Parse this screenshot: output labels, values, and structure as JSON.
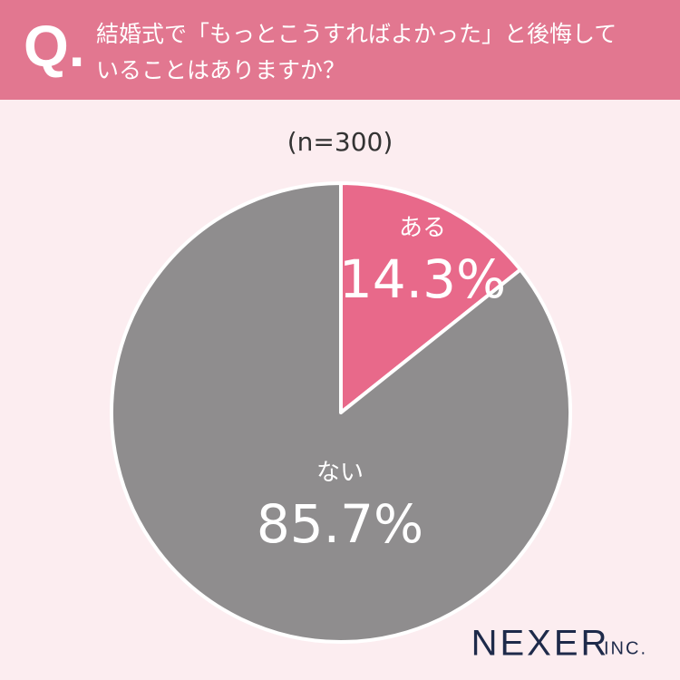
{
  "header": {
    "mark": "Q."
  },
  "chart_data": {
    "type": "pie",
    "title": [
      "結婚式で「もっとこうすればよかった」と後悔して",
      "いることはありますか？"
    ],
    "subtitle": "(n=300)",
    "categories": [
      "ある",
      "ない"
    ],
    "values": [
      14.3,
      85.7
    ],
    "value_labels": [
      "14.3%",
      "85.7%"
    ],
    "colors": [
      "#e8698a",
      "#8f8d8e"
    ]
  },
  "footer": {
    "logo": "NEXER",
    "logo_suffix": "INC."
  }
}
